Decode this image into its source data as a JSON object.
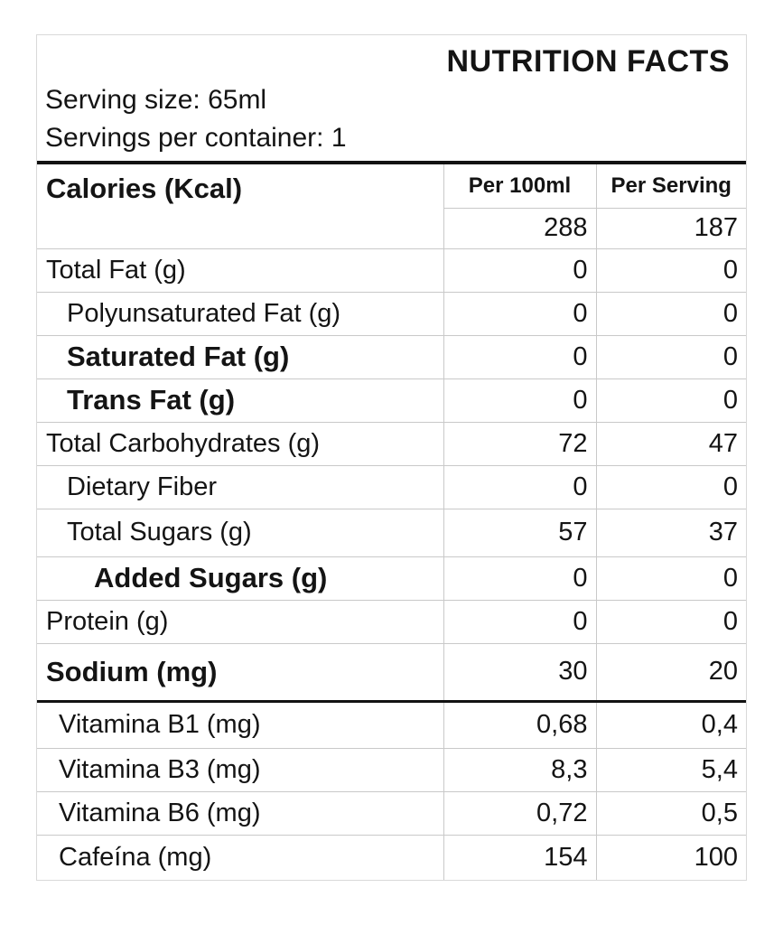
{
  "title": "NUTRITION FACTS",
  "serving_size": "Serving size: 65ml",
  "servings_per_container": "Servings per container: 1",
  "table": {
    "calories": {
      "label": "Calories (Kcal)",
      "per_100ml": "288",
      "per_serving": "187"
    },
    "columns": {
      "per_100ml": "Per 100ml",
      "per_serving": "Per Serving"
    },
    "nutrients": [
      {
        "label": "Total Fat (g)",
        "per_100ml": "0",
        "per_serving": "0",
        "bold": false,
        "indent": 0
      },
      {
        "label": "Polyunsaturated Fat (g)",
        "per_100ml": "0",
        "per_serving": "0",
        "bold": false,
        "indent": 1
      },
      {
        "label": "Saturated Fat (g)",
        "per_100ml": "0",
        "per_serving": "0",
        "bold": true,
        "indent": 1
      },
      {
        "label": "Trans Fat (g)",
        "per_100ml": "0",
        "per_serving": "0",
        "bold": true,
        "indent": 1
      },
      {
        "label": "Total Carbohydrates (g)",
        "per_100ml": "72",
        "per_serving": "47",
        "bold": false,
        "indent": 0
      },
      {
        "label": "Dietary Fiber",
        "per_100ml": "0",
        "per_serving": "0",
        "bold": false,
        "indent": 1
      },
      {
        "label": "Total Sugars (g)",
        "per_100ml": "57",
        "per_serving": "37",
        "bold": false,
        "indent": 1
      },
      {
        "label": "Added Sugars (g)",
        "per_100ml": "0",
        "per_serving": "0",
        "bold": true,
        "indent": 2
      },
      {
        "label": "Protein (g)",
        "per_100ml": "0",
        "per_serving": "0",
        "bold": false,
        "indent": 0
      },
      {
        "label": "Sodium (mg)",
        "per_100ml": "30",
        "per_serving": "20",
        "bold": true,
        "indent": 0
      }
    ],
    "micronutrients": [
      {
        "label": "Vitamina B1 (mg)",
        "per_100ml": "0,68",
        "per_serving": "0,4"
      },
      {
        "label": "Vitamina B3 (mg)",
        "per_100ml": "8,3",
        "per_serving": "5,4"
      },
      {
        "label": "Vitamina B6 (mg)",
        "per_100ml": "0,72",
        "per_serving": "0,5"
      },
      {
        "label": "Cafeína (mg)",
        "per_100ml": "154",
        "per_serving": "100"
      }
    ]
  },
  "colors": {
    "text": "#141414",
    "grid_line": "#c9c9c9",
    "heavy_rule": "#121212",
    "outer_border": "#d9d9d9",
    "background": "#ffffff"
  }
}
